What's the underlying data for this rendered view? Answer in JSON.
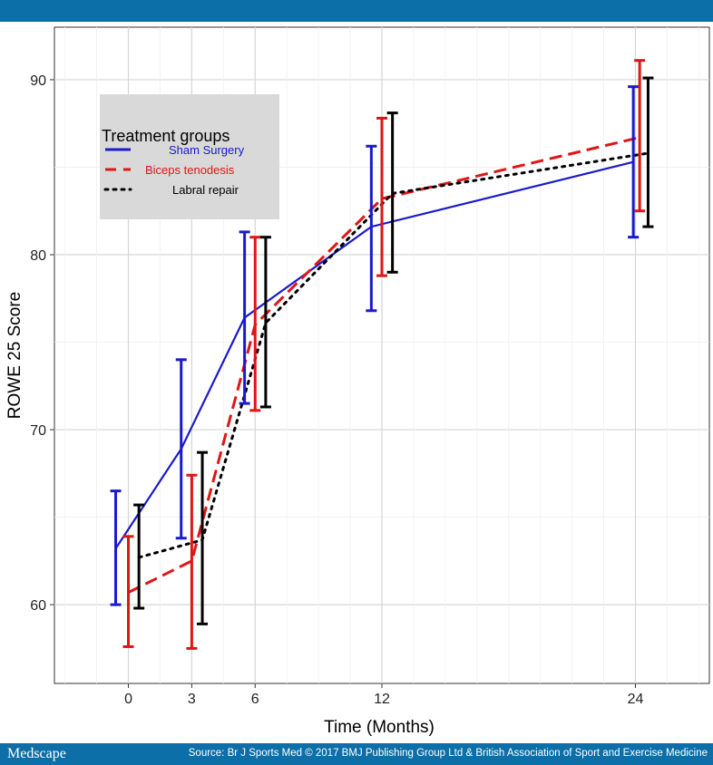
{
  "brand": "Medscape",
  "source": "Source: Br J Sports Med © 2017 BMJ Publishing Group Ltd & British Association of Sport and Exercise Medicine",
  "chart_data": {
    "type": "line",
    "title": "",
    "xlabel": "Time (Months)",
    "ylabel": "ROWE 25 Score",
    "xlim": [
      -3.5,
      27.5
    ],
    "ylim": [
      55.5,
      93.0
    ],
    "xticks": [
      0,
      3,
      6,
      12,
      24
    ],
    "yticks": [
      60,
      70,
      80,
      90
    ],
    "grid": true,
    "legend": {
      "title": "Treatment groups",
      "position": "top-left"
    },
    "series": [
      {
        "name": "Sham Surgery",
        "color": "#1a1acc",
        "dash": "solid",
        "x": [
          -0.6,
          2.5,
          5.5,
          11.5,
          23.9
        ],
        "y": [
          63.2,
          68.9,
          76.4,
          81.6,
          85.3
        ],
        "lower": [
          60.0,
          63.8,
          71.5,
          76.8,
          81.0
        ],
        "upper": [
          66.5,
          74.0,
          81.3,
          86.2,
          89.6
        ]
      },
      {
        "name": "Biceps tenodesis",
        "color": "#e01515",
        "dash": "dashed",
        "x": [
          0.0,
          3.0,
          6.0,
          12.0,
          24.2
        ],
        "y": [
          60.7,
          62.5,
          76.0,
          83.2,
          86.7
        ],
        "lower": [
          57.6,
          57.5,
          71.1,
          78.8,
          82.5
        ],
        "upper": [
          63.9,
          67.4,
          81.0,
          87.8,
          91.1
        ]
      },
      {
        "name": "Labral repair",
        "color": "#000000",
        "dash": "dotted",
        "x": [
          0.5,
          3.5,
          6.5,
          12.5,
          24.6
        ],
        "y": [
          62.7,
          63.7,
          76.1,
          83.5,
          85.8
        ],
        "lower": [
          59.8,
          58.9,
          71.3,
          79.0,
          81.6
        ],
        "upper": [
          65.7,
          68.7,
          81.0,
          88.1,
          90.1
        ]
      }
    ]
  }
}
